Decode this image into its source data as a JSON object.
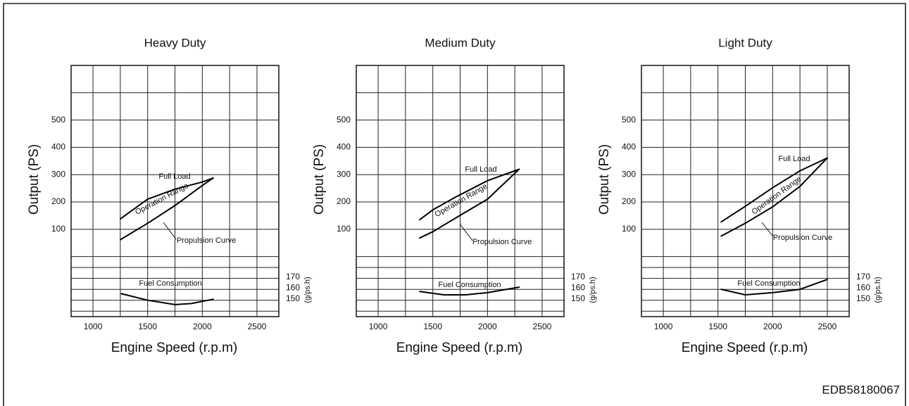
{
  "chart_data": [
    {
      "type": "line",
      "title": "Heavy Duty",
      "xlabel": "Engine Speed (r.p.m)",
      "ylabel": "Output (PS)",
      "y2label": "(g/ps.h)",
      "annotation": "Operation Range",
      "xlim": [
        800,
        2700
      ],
      "xticks": [
        1000,
        1500,
        2000,
        2500
      ],
      "xgrid": [
        1250,
        1750,
        2250
      ],
      "ylim": [
        -220,
        700
      ],
      "yticks": [
        100,
        200,
        300,
        400,
        500
      ],
      "ygrid": [
        0,
        600
      ],
      "y2lim": [
        135,
        365
      ],
      "y2ticks": [
        150,
        160,
        170
      ],
      "y2grid": [
        140,
        180
      ],
      "series": [
        {
          "name": "Full Load",
          "color": "#000000",
          "x": [
            1250,
            1500,
            1750,
            2000,
            2100
          ],
          "values": [
            138,
            210,
            247,
            273,
            288
          ]
        },
        {
          "name": "Propulsion Curve",
          "color": "#000000",
          "x": [
            1250,
            1500,
            1750,
            2000,
            2100
          ],
          "values": [
            62,
            122,
            187,
            260,
            288
          ]
        },
        {
          "name": "Fuel Consumption",
          "color": "#000000",
          "axis": "y2",
          "x": [
            1260,
            1500,
            1750,
            1900,
            2100
          ],
          "values": [
            156,
            150,
            146,
            147,
            151
          ]
        }
      ]
    },
    {
      "type": "line",
      "title": "Medium Duty",
      "xlabel": "Engine Speed (r.p.m)",
      "ylabel": "Output (PS)",
      "y2label": "(g/ps.h)",
      "annotation": "Operation Range",
      "xlim": [
        800,
        2700
      ],
      "xticks": [
        1000,
        1500,
        2000,
        2500
      ],
      "xgrid": [
        1250,
        1750,
        2250
      ],
      "ylim": [
        -220,
        700
      ],
      "yticks": [
        100,
        200,
        300,
        400,
        500
      ],
      "ygrid": [
        0,
        600
      ],
      "y2lim": [
        135,
        365
      ],
      "y2ticks": [
        150,
        160,
        170
      ],
      "y2grid": [
        140,
        180
      ],
      "series": [
        {
          "name": "Full Load",
          "color": "#000000",
          "x": [
            1380,
            1500,
            1700,
            2000,
            2290
          ],
          "values": [
            135,
            171,
            216,
            278,
            320
          ]
        },
        {
          "name": "Propulsion Curve",
          "color": "#000000",
          "x": [
            1380,
            1500,
            1750,
            2000,
            2290
          ],
          "values": [
            68,
            91,
            151,
            210,
            320
          ]
        },
        {
          "name": "Fuel Consumption",
          "color": "#000000",
          "axis": "y2",
          "x": [
            1380,
            1600,
            1800,
            2000,
            2290
          ],
          "values": [
            158,
            155,
            155,
            157,
            162
          ]
        }
      ]
    },
    {
      "type": "line",
      "title": "Light Duty",
      "xlabel": "Engine Speed (r.p.m)",
      "ylabel": "Output (PS)",
      "y2label": "(g/ps.h)",
      "annotation": "Operation Range",
      "xlim": [
        800,
        2700
      ],
      "xticks": [
        1000,
        1500,
        2000,
        2500
      ],
      "xgrid": [
        1250,
        1750,
        2250
      ],
      "ylim": [
        -220,
        700
      ],
      "yticks": [
        100,
        200,
        300,
        400,
        500
      ],
      "ygrid": [
        0,
        600
      ],
      "y2lim": [
        135,
        365
      ],
      "y2ticks": [
        150,
        160,
        170
      ],
      "y2grid": [
        140,
        180
      ],
      "series": [
        {
          "name": "Full Load",
          "color": "#000000",
          "x": [
            1530,
            1750,
            2000,
            2250,
            2500
          ],
          "values": [
            127,
            184,
            252,
            314,
            361
          ]
        },
        {
          "name": "Propulsion Curve",
          "color": "#000000",
          "x": [
            1530,
            1750,
            2000,
            2250,
            2500
          ],
          "values": [
            75,
            122,
            182,
            257,
            361
          ]
        },
        {
          "name": "Fuel Consumption",
          "color": "#000000",
          "axis": "y2",
          "x": [
            1530,
            1750,
            2000,
            2250,
            2500
          ],
          "values": [
            160,
            155,
            157,
            160,
            169
          ]
        }
      ]
    }
  ],
  "figure_code": "EDB58180067"
}
